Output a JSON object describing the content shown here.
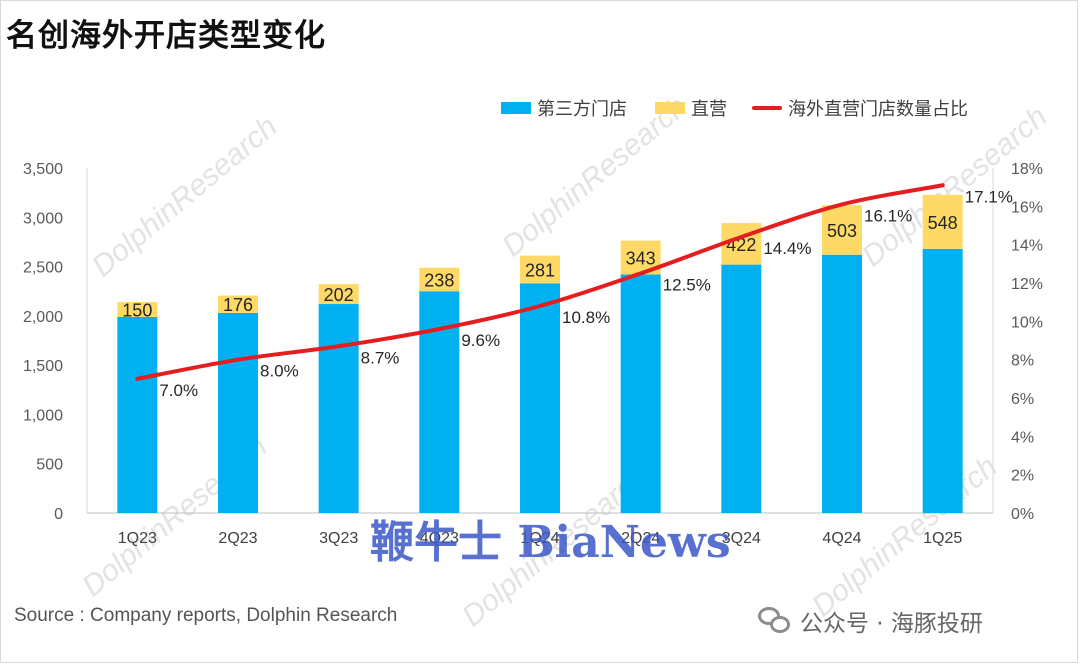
{
  "title": "名创海外开店类型变化",
  "source": "Source : Company reports, Dolphin Research",
  "wechat": {
    "icon": "wechat-icon",
    "label": "公众号 · 海豚投研"
  },
  "watermark": "鞭牛士 BiaNews",
  "faint_watermark": "DolphinResearch",
  "faint_watermark_cn": "海豚投研",
  "colors": {
    "third_party": "#00B0F0",
    "direct": "#FFD966",
    "ratio": "#E41E1E"
  },
  "chart_data": {
    "type": "bar",
    "stacked": true,
    "categories": [
      "1Q23",
      "2Q23",
      "3Q23",
      "4Q23",
      "1Q24",
      "2Q24",
      "3Q24",
      "4Q24",
      "1Q25"
    ],
    "series": [
      {
        "name": "第三方门店",
        "type": "bar",
        "axis": "left",
        "values": [
          1990,
          2030,
          2120,
          2250,
          2330,
          2420,
          2520,
          2620,
          2680
        ]
      },
      {
        "name": "直营",
        "type": "bar",
        "axis": "left",
        "show_labels": true,
        "values": [
          150,
          176,
          202,
          238,
          281,
          343,
          422,
          503,
          548
        ]
      },
      {
        "name": "海外直营门店数量占比",
        "type": "line",
        "axis": "right",
        "values": [
          7.0,
          8.0,
          8.7,
          9.6,
          10.8,
          12.5,
          14.4,
          16.1,
          17.1
        ],
        "labels": [
          "7.0%",
          "8.0%",
          "8.7%",
          "9.6%",
          "10.8%",
          "12.5%",
          "14.4%",
          "16.1%",
          "17.1%"
        ]
      }
    ],
    "y_left": {
      "min": 0,
      "max": 3500,
      "ticks": [
        "0",
        "500",
        "1,000",
        "1,500",
        "2,000",
        "2,500",
        "3,000",
        "3,500"
      ]
    },
    "y_right": {
      "min": 0,
      "max": 18,
      "ticks": [
        "0%",
        "2%",
        "4%",
        "6%",
        "8%",
        "10%",
        "12%",
        "14%",
        "16%",
        "18%"
      ]
    },
    "grid": false,
    "legend_position": "top-right"
  }
}
